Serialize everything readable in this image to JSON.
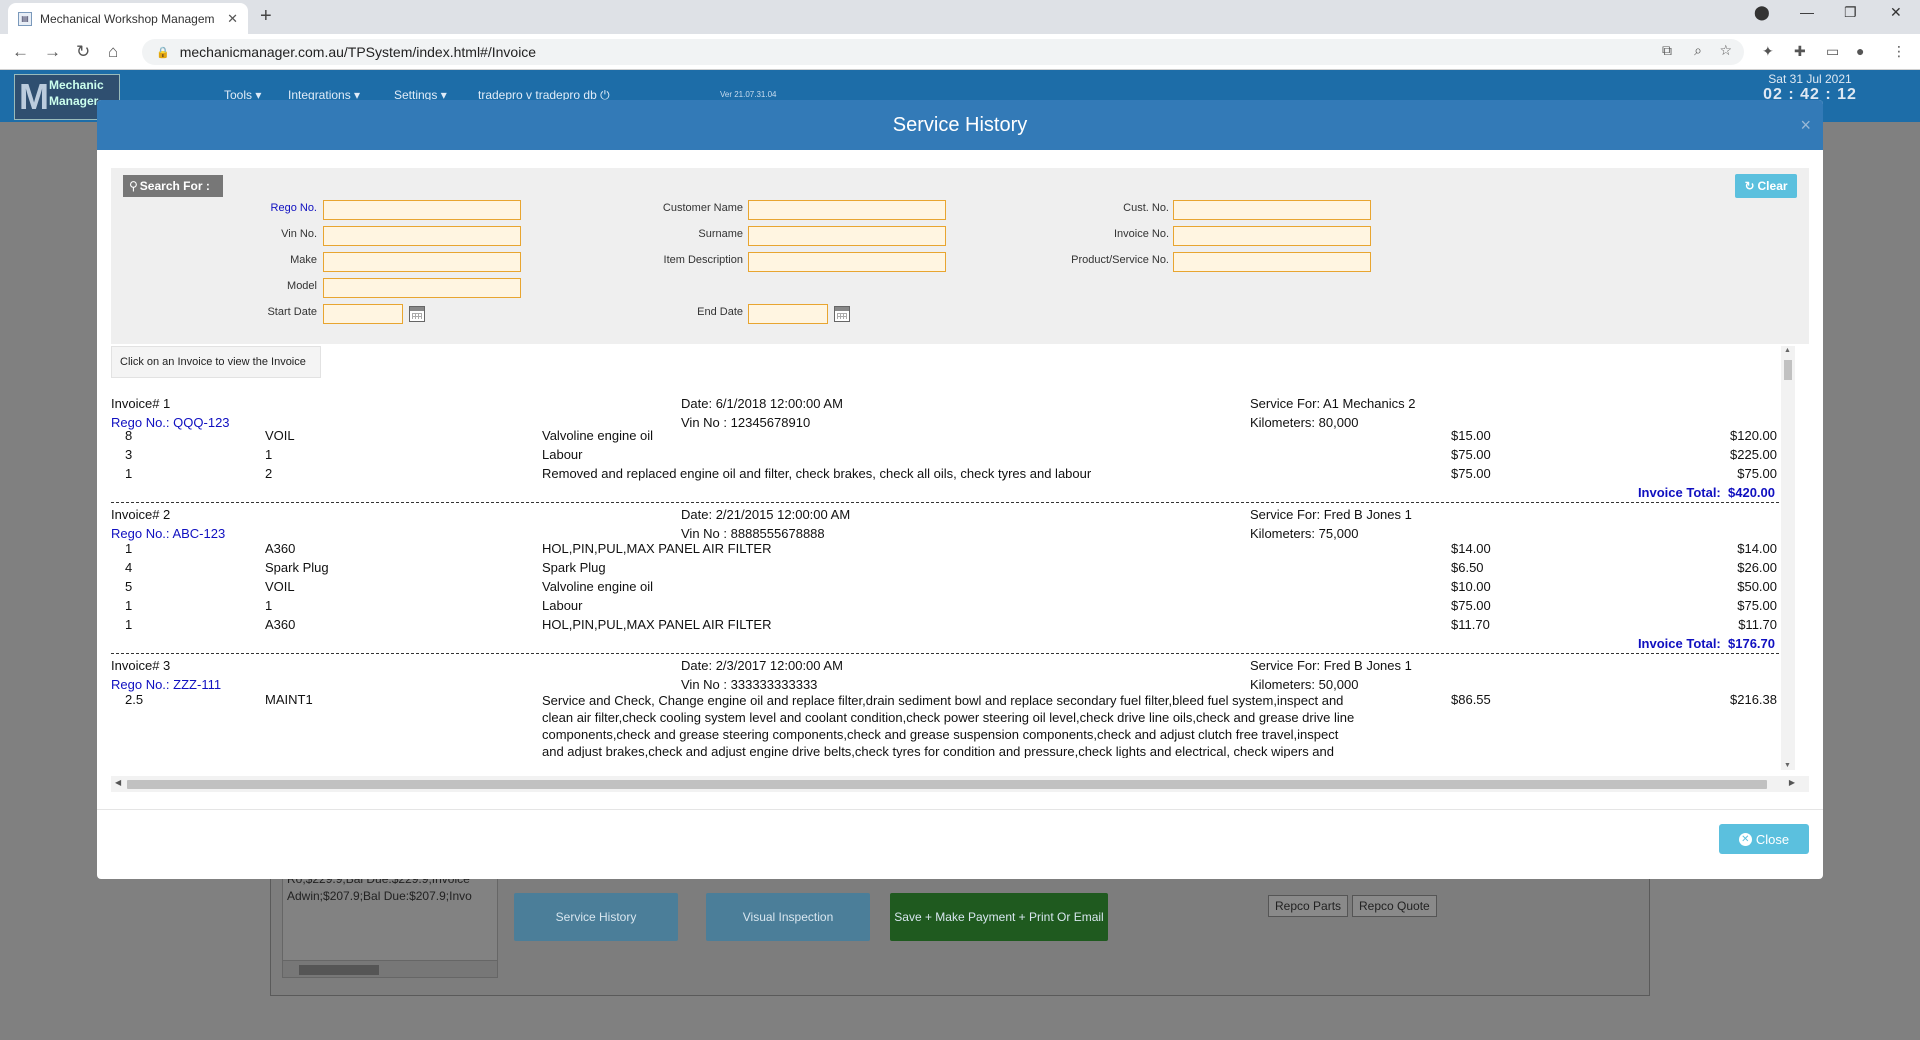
{
  "browser": {
    "tab_title": "Mechanical Workshop Managem",
    "url": "mechanicmanager.com.au/TPSystem/index.html#/Invoice"
  },
  "app": {
    "logo_text": "Mechanic Manager",
    "nav": [
      "Tools ▾",
      "Integrations ▾",
      "Settings ▾",
      "tradepro v tradepro db ⏻"
    ],
    "version": "Ver 21.07.31.04",
    "date": "Sat 31 Jul 2021",
    "time": "02 : 42 : 12",
    "bg_list_text": "Ro;$229.9;Bal Due:$229.9;Invoice Adwin;$207.9;Bal Due:$207.9;Invo",
    "bg_buttons": {
      "service_history": "Service History",
      "visual_inspection": "Visual Inspection",
      "save_payment": "Save + Make Payment + Print Or Email",
      "repco_parts": "Repco Parts",
      "repco_quote": "Repco Quote"
    }
  },
  "modal": {
    "title": "Service History",
    "search_label": "Search For :",
    "clear_label": "Clear",
    "close_label": "Close",
    "hint": "Click on an Invoice to view the Invoice",
    "fields": {
      "rego": "Rego No.",
      "vin": "Vin No.",
      "make": "Make",
      "model": "Model",
      "start_date": "Start Date",
      "customer_name": "Customer Name",
      "surname": "Surname",
      "item_description": "Item Description",
      "end_date": "End Date",
      "cust_no": "Cust. No.",
      "invoice_no": "Invoice No.",
      "product_service_no": "Product/Service No."
    }
  },
  "labels": {
    "invoice": "Invoice#",
    "date": "Date:",
    "service_for": "Service For:",
    "rego": "Rego No.:",
    "vin": "Vin No :",
    "km": "Kilometers:",
    "invoice_total": "Invoice Total:"
  },
  "invoices": [
    {
      "number": "1",
      "date": "6/1/2018 12:00:00 AM",
      "service_for": "A1 Mechanics  2",
      "rego": "QQQ-123",
      "vin": "12345678910",
      "km": "80,000",
      "total": "$420.00",
      "items": [
        {
          "qty": "8",
          "code": "VOIL",
          "desc": "Valvoline engine oil",
          "price": "$15.00",
          "amount": "$120.00"
        },
        {
          "qty": "3",
          "code": "1",
          "desc": "Labour",
          "price": "$75.00",
          "amount": "$225.00"
        },
        {
          "qty": "1",
          "code": "2",
          "desc": "Removed and replaced engine oil and filter, check brakes, check all oils, check tyres and labour",
          "price": "$75.00",
          "amount": "$75.00"
        }
      ]
    },
    {
      "number": "2",
      "date": "2/21/2015 12:00:00 AM",
      "service_for": "Fred B Jones  1",
      "rego": "ABC-123",
      "vin": "8888555678888",
      "km": "75,000",
      "total": "$176.70",
      "items": [
        {
          "qty": "1",
          "code": "A360",
          "desc": "HOL,PIN,PUL,MAX PANEL AIR FILTER",
          "price": "$14.00",
          "amount": "$14.00"
        },
        {
          "qty": "4",
          "code": "Spark Plug",
          "desc": "Spark Plug",
          "price": "$6.50",
          "amount": "$26.00"
        },
        {
          "qty": "5",
          "code": "VOIL",
          "desc": "Valvoline engine oil",
          "price": "$10.00",
          "amount": "$50.00"
        },
        {
          "qty": "1",
          "code": "1",
          "desc": "Labour",
          "price": "$75.00",
          "amount": "$75.00"
        },
        {
          "qty": "1",
          "code": "A360",
          "desc": "HOL,PIN,PUL,MAX PANEL AIR FILTER",
          "price": "$11.70",
          "amount": "$11.70"
        }
      ]
    },
    {
      "number": "3",
      "date": "2/3/2017 12:00:00 AM",
      "service_for": "Fred B Jones  1",
      "rego": "ZZZ-111",
      "vin": "333333333333",
      "km": "50,000",
      "total": "",
      "items": [
        {
          "qty": "2.5",
          "code": "MAINT1",
          "desc": "Service and Check, Change engine oil and replace filter,drain sediment bowl and replace secondary fuel filter,bleed fuel system,inspect and clean air filter,check cooling system level and coolant condition,check power steering oil level,check drive line oils,check and grease drive line components,check and grease steering components,check and grease suspension components,check and adjust clutch free travel,inspect and adjust brakes,check and adjust engine drive belts,check tyres for condition and pressure,check lights and electrical, check wipers and washers, top up all other fluids, check battery for load and condition and terminals",
          "price": "$86.55",
          "amount": "$216.38"
        }
      ]
    }
  ]
}
